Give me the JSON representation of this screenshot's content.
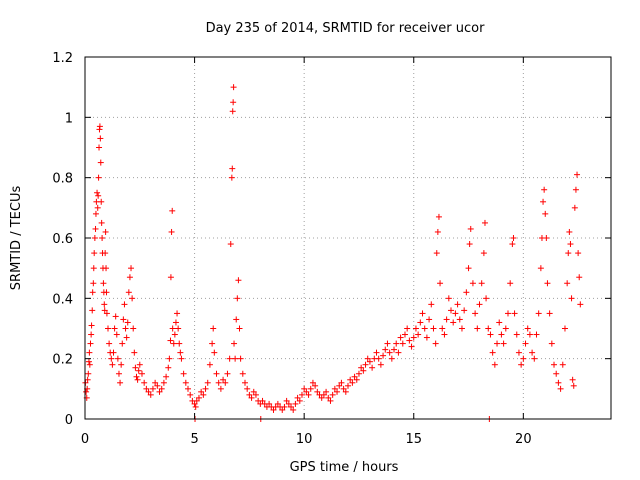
{
  "chart_data": {
    "type": "scatter",
    "title": "Day 235 of 2014, SRMTID for receiver ucor",
    "xlabel": "GPS time / hours",
    "ylabel": "SRMTID / TECUs",
    "xlim": [
      0,
      24
    ],
    "ylim": [
      0,
      1.2
    ],
    "xticks": [
      0,
      5,
      10,
      15,
      20
    ],
    "yticks": [
      0,
      0.2,
      0.4,
      0.6,
      0.8,
      1,
      1.2
    ],
    "xtick_labels": [
      "0",
      "5",
      "10",
      "15",
      "20"
    ],
    "ytick_labels": [
      "0",
      "0.2",
      "0.4",
      "0.6",
      "0.8",
      "1",
      "1.2"
    ],
    "grid": true,
    "marker": "plus",
    "series": [
      {
        "name": "SRMTID",
        "color": "#ff0000",
        "points": [
          [
            0.02,
            0.12
          ],
          [
            0.05,
            0.09
          ],
          [
            0.08,
            0.07
          ],
          [
            0.1,
            0.1
          ],
          [
            0.12,
            0.13
          ],
          [
            0.15,
            0.15
          ],
          [
            0.18,
            0.19
          ],
          [
            0.2,
            0.22
          ],
          [
            0.22,
            0.18
          ],
          [
            0.25,
            0.25
          ],
          [
            0.28,
            0.28
          ],
          [
            0.3,
            0.31
          ],
          [
            0.33,
            0.36
          ],
          [
            0.35,
            0.42
          ],
          [
            0.38,
            0.45
          ],
          [
            0.4,
            0.5
          ],
          [
            0.42,
            0.55
          ],
          [
            0.45,
            0.6
          ],
          [
            0.48,
            0.63
          ],
          [
            0.5,
            0.68
          ],
          [
            0.52,
            0.72
          ],
          [
            0.55,
            0.75
          ],
          [
            0.58,
            0.7
          ],
          [
            0.6,
            0.74
          ],
          [
            0.62,
            0.8
          ],
          [
            0.64,
            0.9
          ],
          [
            0.66,
            0.96
          ],
          [
            0.68,
            0.97
          ],
          [
            0.7,
            0.93
          ],
          [
            0.72,
            0.85
          ],
          [
            0.74,
            0.72
          ],
          [
            0.76,
            0.65
          ],
          [
            0.78,
            0.6
          ],
          [
            0.8,
            0.55
          ],
          [
            0.82,
            0.5
          ],
          [
            0.84,
            0.45
          ],
          [
            0.86,
            0.42
          ],
          [
            0.88,
            0.38
          ],
          [
            0.9,
            0.36
          ],
          [
            0.92,
            0.55
          ],
          [
            0.94,
            0.62
          ],
          [
            0.96,
            0.5
          ],
          [
            0.98,
            0.42
          ],
          [
            1.0,
            0.35
          ],
          [
            1.05,
            0.3
          ],
          [
            1.1,
            0.25
          ],
          [
            1.15,
            0.22
          ],
          [
            1.2,
            0.2
          ],
          [
            1.25,
            0.18
          ],
          [
            1.3,
            0.22
          ],
          [
            1.35,
            0.3
          ],
          [
            1.4,
            0.34
          ],
          [
            1.45,
            0.28
          ],
          [
            1.5,
            0.2
          ],
          [
            1.55,
            0.15
          ],
          [
            1.6,
            0.12
          ],
          [
            1.65,
            0.18
          ],
          [
            1.7,
            0.25
          ],
          [
            1.75,
            0.33
          ],
          [
            1.8,
            0.38
          ],
          [
            1.85,
            0.3
          ],
          [
            1.9,
            0.27
          ],
          [
            1.95,
            0.32
          ],
          [
            2.0,
            0.42
          ],
          [
            2.05,
            0.47
          ],
          [
            2.1,
            0.5
          ],
          [
            2.15,
            0.4
          ],
          [
            2.2,
            0.3
          ],
          [
            2.25,
            0.22
          ],
          [
            2.3,
            0.17
          ],
          [
            2.35,
            0.14
          ],
          [
            2.4,
            0.13
          ],
          [
            2.45,
            0.16
          ],
          [
            2.5,
            0.18
          ],
          [
            2.6,
            0.15
          ],
          [
            2.7,
            0.12
          ],
          [
            2.8,
            0.1
          ],
          [
            2.9,
            0.09
          ],
          [
            3.0,
            0.08
          ],
          [
            3.1,
            0.1
          ],
          [
            3.2,
            0.12
          ],
          [
            3.3,
            0.11
          ],
          [
            3.4,
            0.09
          ],
          [
            3.5,
            0.1
          ],
          [
            3.6,
            0.12
          ],
          [
            3.7,
            0.14
          ],
          [
            3.8,
            0.17
          ],
          [
            3.85,
            0.2
          ],
          [
            3.9,
            0.26
          ],
          [
            3.92,
            0.47
          ],
          [
            3.95,
            0.62
          ],
          [
            3.98,
            0.69
          ],
          [
            4.0,
            0.3
          ],
          [
            4.05,
            0.25
          ],
          [
            4.1,
            0.28
          ],
          [
            4.15,
            0.32
          ],
          [
            4.2,
            0.35
          ],
          [
            4.25,
            0.3
          ],
          [
            4.3,
            0.25
          ],
          [
            4.35,
            0.22
          ],
          [
            4.4,
            0.2
          ],
          [
            4.5,
            0.15
          ],
          [
            4.6,
            0.12
          ],
          [
            4.7,
            0.1
          ],
          [
            4.8,
            0.08
          ],
          [
            4.9,
            0.06
          ],
          [
            5.0,
            0.05
          ],
          [
            5.02,
            0.0
          ],
          [
            5.05,
            0.04
          ],
          [
            5.1,
            0.06
          ],
          [
            5.2,
            0.07
          ],
          [
            5.3,
            0.09
          ],
          [
            5.4,
            0.08
          ],
          [
            5.5,
            0.1
          ],
          [
            5.6,
            0.12
          ],
          [
            5.7,
            0.18
          ],
          [
            5.8,
            0.25
          ],
          [
            5.85,
            0.3
          ],
          [
            5.9,
            0.22
          ],
          [
            6.0,
            0.15
          ],
          [
            6.1,
            0.12
          ],
          [
            6.2,
            0.1
          ],
          [
            6.3,
            0.13
          ],
          [
            6.4,
            0.12
          ],
          [
            6.5,
            0.15
          ],
          [
            6.6,
            0.2
          ],
          [
            6.65,
            0.58
          ],
          [
            6.7,
            0.8
          ],
          [
            6.72,
            0.83
          ],
          [
            6.74,
            1.02
          ],
          [
            6.76,
            1.05
          ],
          [
            6.78,
            1.1
          ],
          [
            6.8,
            0.25
          ],
          [
            6.85,
            0.2
          ],
          [
            6.9,
            0.33
          ],
          [
            6.95,
            0.4
          ],
          [
            7.0,
            0.46
          ],
          [
            7.05,
            0.3
          ],
          [
            7.1,
            0.2
          ],
          [
            7.2,
            0.15
          ],
          [
            7.3,
            0.12
          ],
          [
            7.4,
            0.1
          ],
          [
            7.5,
            0.08
          ],
          [
            7.6,
            0.07
          ],
          [
            7.7,
            0.09
          ],
          [
            7.8,
            0.08
          ],
          [
            7.9,
            0.06
          ],
          [
            8.0,
            0.05
          ],
          [
            8.02,
            0.0
          ],
          [
            8.1,
            0.06
          ],
          [
            8.2,
            0.05
          ],
          [
            8.3,
            0.04
          ],
          [
            8.4,
            0.05
          ],
          [
            8.5,
            0.04
          ],
          [
            8.6,
            0.03
          ],
          [
            8.7,
            0.04
          ],
          [
            8.8,
            0.05
          ],
          [
            8.9,
            0.04
          ],
          [
            9.0,
            0.03
          ],
          [
            9.1,
            0.04
          ],
          [
            9.2,
            0.06
          ],
          [
            9.3,
            0.05
          ],
          [
            9.4,
            0.04
          ],
          [
            9.5,
            0.03
          ],
          [
            9.6,
            0.05
          ],
          [
            9.7,
            0.07
          ],
          [
            9.8,
            0.06
          ],
          [
            9.9,
            0.08
          ],
          [
            10.0,
            0.1
          ],
          [
            10.1,
            0.09
          ],
          [
            10.2,
            0.08
          ],
          [
            10.3,
            0.1
          ],
          [
            10.4,
            0.12
          ],
          [
            10.5,
            0.11
          ],
          [
            10.6,
            0.09
          ],
          [
            10.7,
            0.08
          ],
          [
            10.8,
            0.07
          ],
          [
            10.9,
            0.08
          ],
          [
            11.0,
            0.09
          ],
          [
            11.1,
            0.07
          ],
          [
            11.2,
            0.06
          ],
          [
            11.3,
            0.08
          ],
          [
            11.4,
            0.1
          ],
          [
            11.5,
            0.09
          ],
          [
            11.6,
            0.11
          ],
          [
            11.7,
            0.12
          ],
          [
            11.8,
            0.1
          ],
          [
            11.9,
            0.09
          ],
          [
            12.0,
            0.11
          ],
          [
            12.1,
            0.13
          ],
          [
            12.2,
            0.12
          ],
          [
            12.3,
            0.14
          ],
          [
            12.4,
            0.13
          ],
          [
            12.5,
            0.15
          ],
          [
            12.6,
            0.17
          ],
          [
            12.7,
            0.16
          ],
          [
            12.8,
            0.18
          ],
          [
            12.9,
            0.2
          ],
          [
            13.0,
            0.19
          ],
          [
            13.1,
            0.17
          ],
          [
            13.2,
            0.2
          ],
          [
            13.3,
            0.22
          ],
          [
            13.4,
            0.2
          ],
          [
            13.5,
            0.18
          ],
          [
            13.6,
            0.21
          ],
          [
            13.7,
            0.23
          ],
          [
            13.8,
            0.25
          ],
          [
            13.9,
            0.22
          ],
          [
            14.0,
            0.2
          ],
          [
            14.1,
            0.23
          ],
          [
            14.2,
            0.25
          ],
          [
            14.3,
            0.22
          ],
          [
            14.4,
            0.27
          ],
          [
            14.5,
            0.25
          ],
          [
            14.6,
            0.28
          ],
          [
            14.7,
            0.3
          ],
          [
            14.8,
            0.26
          ],
          [
            14.9,
            0.24
          ],
          [
            15.0,
            0.27
          ],
          [
            15.1,
            0.3
          ],
          [
            15.2,
            0.28
          ],
          [
            15.3,
            0.32
          ],
          [
            15.4,
            0.35
          ],
          [
            15.5,
            0.3
          ],
          [
            15.6,
            0.27
          ],
          [
            15.7,
            0.33
          ],
          [
            15.8,
            0.38
          ],
          [
            15.9,
            0.3
          ],
          [
            16.0,
            0.25
          ],
          [
            16.05,
            0.55
          ],
          [
            16.1,
            0.62
          ],
          [
            16.15,
            0.67
          ],
          [
            16.2,
            0.45
          ],
          [
            16.3,
            0.3
          ],
          [
            16.4,
            0.28
          ],
          [
            16.5,
            0.33
          ],
          [
            16.6,
            0.4
          ],
          [
            16.7,
            0.36
          ],
          [
            16.8,
            0.32
          ],
          [
            16.9,
            0.35
          ],
          [
            17.0,
            0.38
          ],
          [
            17.1,
            0.33
          ],
          [
            17.2,
            0.3
          ],
          [
            17.3,
            0.36
          ],
          [
            17.4,
            0.42
          ],
          [
            17.5,
            0.5
          ],
          [
            17.55,
            0.58
          ],
          [
            17.6,
            0.63
          ],
          [
            17.7,
            0.45
          ],
          [
            17.8,
            0.35
          ],
          [
            17.9,
            0.3
          ],
          [
            18.0,
            0.38
          ],
          [
            18.1,
            0.45
          ],
          [
            18.2,
            0.55
          ],
          [
            18.25,
            0.65
          ],
          [
            18.3,
            0.4
          ],
          [
            18.4,
            0.3
          ],
          [
            18.45,
            0.0
          ],
          [
            18.5,
            0.28
          ],
          [
            18.6,
            0.22
          ],
          [
            18.7,
            0.18
          ],
          [
            18.8,
            0.25
          ],
          [
            18.9,
            0.32
          ],
          [
            19.0,
            0.28
          ],
          [
            19.1,
            0.25
          ],
          [
            19.2,
            0.3
          ],
          [
            19.3,
            0.35
          ],
          [
            19.4,
            0.45
          ],
          [
            19.5,
            0.58
          ],
          [
            19.55,
            0.6
          ],
          [
            19.6,
            0.35
          ],
          [
            19.7,
            0.28
          ],
          [
            19.8,
            0.22
          ],
          [
            19.9,
            0.18
          ],
          [
            20.0,
            0.2
          ],
          [
            20.1,
            0.25
          ],
          [
            20.2,
            0.3
          ],
          [
            20.3,
            0.28
          ],
          [
            20.4,
            0.22
          ],
          [
            20.5,
            0.2
          ],
          [
            20.6,
            0.28
          ],
          [
            20.7,
            0.35
          ],
          [
            20.8,
            0.5
          ],
          [
            20.85,
            0.6
          ],
          [
            20.9,
            0.72
          ],
          [
            20.95,
            0.76
          ],
          [
            21.0,
            0.68
          ],
          [
            21.05,
            0.6
          ],
          [
            21.1,
            0.45
          ],
          [
            21.2,
            0.35
          ],
          [
            21.3,
            0.25
          ],
          [
            21.4,
            0.18
          ],
          [
            21.5,
            0.15
          ],
          [
            21.6,
            0.12
          ],
          [
            21.7,
            0.1
          ],
          [
            21.8,
            0.18
          ],
          [
            21.9,
            0.3
          ],
          [
            22.0,
            0.45
          ],
          [
            22.05,
            0.55
          ],
          [
            22.1,
            0.62
          ],
          [
            22.15,
            0.58
          ],
          [
            22.2,
            0.4
          ],
          [
            22.25,
            0.13
          ],
          [
            22.3,
            0.11
          ],
          [
            22.35,
            0.7
          ],
          [
            22.4,
            0.76
          ],
          [
            22.45,
            0.81
          ],
          [
            22.5,
            0.55
          ],
          [
            22.55,
            0.47
          ],
          [
            22.6,
            0.38
          ]
        ]
      }
    ]
  }
}
